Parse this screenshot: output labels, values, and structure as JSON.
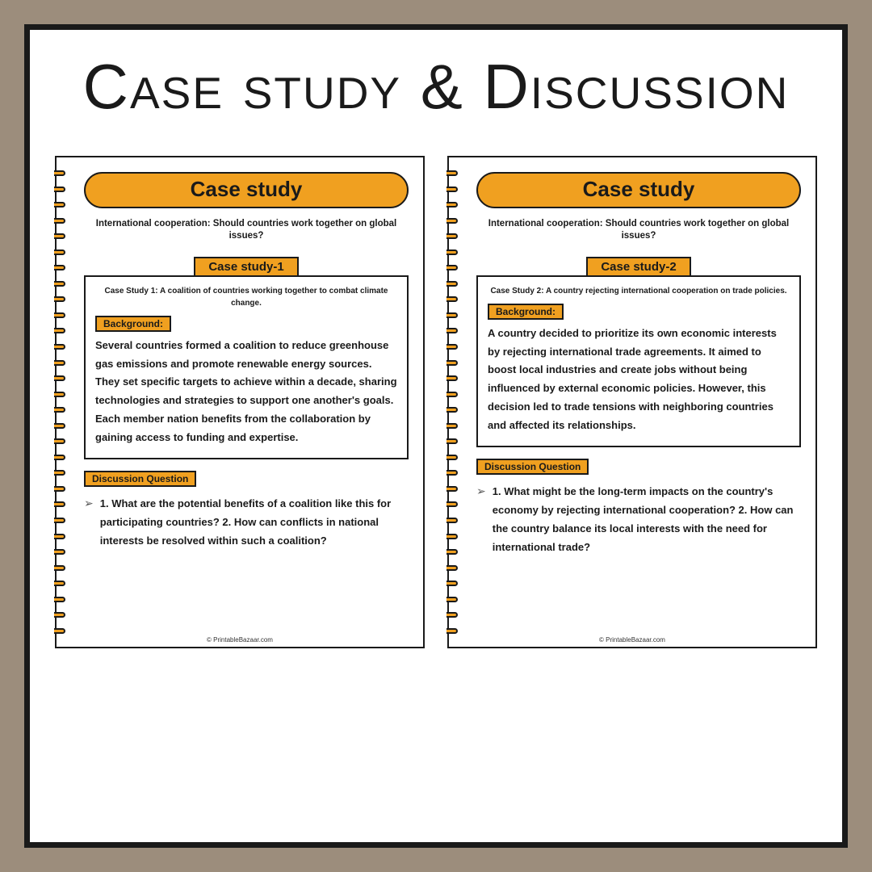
{
  "title": "Case study & Discussion",
  "colors": {
    "page_bg": "#9c8d7c",
    "frame_bg": "#ffffff",
    "frame_border": "#1a1a1a",
    "accent": "#f0a020",
    "text": "#1a1a1a"
  },
  "pages": [
    {
      "header": "Case study",
      "subtitle": "International cooperation: Should countries work together on global issues?",
      "case_label": "Case study-1",
      "case_intro": "Case Study 1: A coalition of countries working together to combat climate change.",
      "bg_label": "Background:",
      "bg_text": "Several countries formed a coalition to reduce greenhouse gas emissions and promote renewable energy sources. They set specific targets to achieve within a decade, sharing technologies and strategies to support one another's goals. Each member nation benefits from the collaboration by gaining access to funding and expertise.",
      "dq_label": "Discussion Question",
      "dq_text": "1. What are the potential benefits of a coalition like this for participating countries? 2. How can conflicts in national interests be resolved within such a coalition?",
      "footer": "© PrintableBazaar.com"
    },
    {
      "header": "Case study",
      "subtitle": "International cooperation: Should countries work together on global issues?",
      "case_label": "Case study-2",
      "case_intro": "Case Study 2: A country rejecting international cooperation on trade policies.",
      "bg_label": "Background:",
      "bg_text": "A country decided to prioritize its own economic interests by rejecting international trade agreements. It aimed to boost local industries and create jobs without being influenced by external economic policies. However, this decision led to trade tensions with neighboring countries and affected its relationships.",
      "dq_label": "Discussion Question",
      "dq_text": "1. What might be the long-term impacts on the country's economy by rejecting international cooperation? 2. How can the country balance its local interests with the need for international trade?",
      "footer": "© PrintableBazaar.com"
    }
  ]
}
